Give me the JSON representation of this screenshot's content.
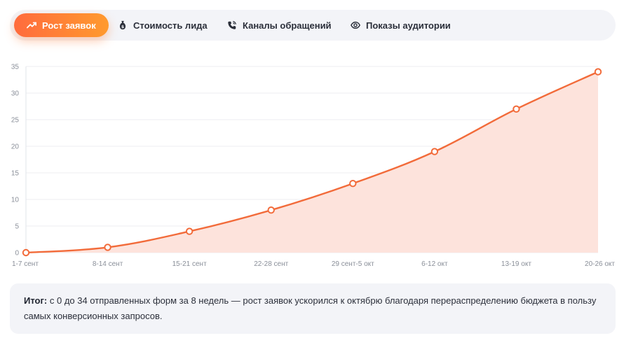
{
  "tabs": [
    {
      "label": "Рост заявок",
      "icon": "trending-up-icon",
      "active": true
    },
    {
      "label": "Стоимость лида",
      "icon": "money-bag-icon",
      "active": false
    },
    {
      "label": "Каналы обращений",
      "icon": "phone-call-icon",
      "active": false
    },
    {
      "label": "Показы аудитории",
      "icon": "eye-icon",
      "active": false
    }
  ],
  "colors": {
    "accent": "#ff6b3d",
    "accent_gradient_end": "#ff9a2e",
    "line": "#f26b3a",
    "area_fill": "#fde3dc",
    "panel_bg": "#f3f4f8"
  },
  "chart_data": {
    "type": "area",
    "categories": [
      "1-7 сент",
      "8-14 сент",
      "15-21 сент",
      "22-28 сент",
      "29 сент-5 окт",
      "6-12 окт",
      "13-19 окт",
      "20-26 окт"
    ],
    "values": [
      0,
      1,
      4,
      8,
      13,
      19,
      27,
      34
    ],
    "ylim": [
      0,
      35
    ],
    "yticks": [
      0,
      5,
      10,
      15,
      20,
      25,
      30,
      35
    ],
    "grid": true,
    "title": "",
    "xlabel": "",
    "ylabel": ""
  },
  "summary": {
    "label": "Итог:",
    "text": "с 0 до 34 отправленных форм за 8 недель — рост заявок ускорился к октябрю благодаря перераспределению бюджета в пользу самых конверсионных запросов."
  }
}
